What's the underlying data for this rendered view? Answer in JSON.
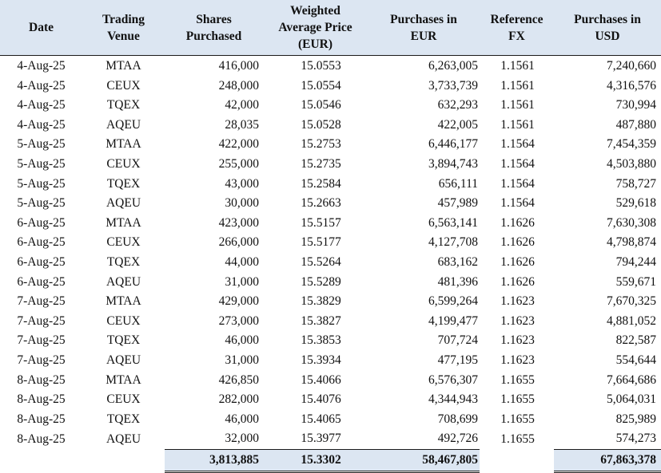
{
  "headers": {
    "date": [
      "Date"
    ],
    "venue": [
      "Trading",
      "Venue"
    ],
    "shares": [
      "Shares",
      "Purchased"
    ],
    "price": [
      "Weighted",
      "Average Price",
      "(EUR)"
    ],
    "eur": [
      "Purchases in",
      "EUR"
    ],
    "fx": [
      "Reference",
      "FX"
    ],
    "usd": [
      "Purchases in",
      "USD"
    ]
  },
  "rows": [
    {
      "date": "4-Aug-25",
      "venue": "MTAA",
      "shares": "416,000",
      "price": "15.0553",
      "eur": "6,263,005",
      "fx": "1.1561",
      "usd": "7,240,660"
    },
    {
      "date": "4-Aug-25",
      "venue": "CEUX",
      "shares": "248,000",
      "price": "15.0554",
      "eur": "3,733,739",
      "fx": "1.1561",
      "usd": "4,316,576"
    },
    {
      "date": "4-Aug-25",
      "venue": "TQEX",
      "shares": "42,000",
      "price": "15.0546",
      "eur": "632,293",
      "fx": "1.1561",
      "usd": "730,994"
    },
    {
      "date": "4-Aug-25",
      "venue": "AQEU",
      "shares": "28,035",
      "price": "15.0528",
      "eur": "422,005",
      "fx": "1.1561",
      "usd": "487,880"
    },
    {
      "date": "5-Aug-25",
      "venue": "MTAA",
      "shares": "422,000",
      "price": "15.2753",
      "eur": "6,446,177",
      "fx": "1.1564",
      "usd": "7,454,359"
    },
    {
      "date": "5-Aug-25",
      "venue": "CEUX",
      "shares": "255,000",
      "price": "15.2735",
      "eur": "3,894,743",
      "fx": "1.1564",
      "usd": "4,503,880"
    },
    {
      "date": "5-Aug-25",
      "venue": "TQEX",
      "shares": "43,000",
      "price": "15.2584",
      "eur": "656,111",
      "fx": "1.1564",
      "usd": "758,727"
    },
    {
      "date": "5-Aug-25",
      "venue": "AQEU",
      "shares": "30,000",
      "price": "15.2663",
      "eur": "457,989",
      "fx": "1.1564",
      "usd": "529,618"
    },
    {
      "date": "6-Aug-25",
      "venue": "MTAA",
      "shares": "423,000",
      "price": "15.5157",
      "eur": "6,563,141",
      "fx": "1.1626",
      "usd": "7,630,308"
    },
    {
      "date": "6-Aug-25",
      "venue": "CEUX",
      "shares": "266,000",
      "price": "15.5177",
      "eur": "4,127,708",
      "fx": "1.1626",
      "usd": "4,798,874"
    },
    {
      "date": "6-Aug-25",
      "venue": "TQEX",
      "shares": "44,000",
      "price": "15.5264",
      "eur": "683,162",
      "fx": "1.1626",
      "usd": "794,244"
    },
    {
      "date": "6-Aug-25",
      "venue": "AQEU",
      "shares": "31,000",
      "price": "15.5289",
      "eur": "481,396",
      "fx": "1.1626",
      "usd": "559,671"
    },
    {
      "date": "7-Aug-25",
      "venue": "MTAA",
      "shares": "429,000",
      "price": "15.3829",
      "eur": "6,599,264",
      "fx": "1.1623",
      "usd": "7,670,325"
    },
    {
      "date": "7-Aug-25",
      "venue": "CEUX",
      "shares": "273,000",
      "price": "15.3827",
      "eur": "4,199,477",
      "fx": "1.1623",
      "usd": "4,881,052"
    },
    {
      "date": "7-Aug-25",
      "venue": "TQEX",
      "shares": "46,000",
      "price": "15.3853",
      "eur": "707,724",
      "fx": "1.1623",
      "usd": "822,587"
    },
    {
      "date": "7-Aug-25",
      "venue": "AQEU",
      "shares": "31,000",
      "price": "15.3934",
      "eur": "477,195",
      "fx": "1.1623",
      "usd": "554,644"
    },
    {
      "date": "8-Aug-25",
      "venue": "MTAA",
      "shares": "426,850",
      "price": "15.4066",
      "eur": "6,576,307",
      "fx": "1.1655",
      "usd": "7,664,686"
    },
    {
      "date": "8-Aug-25",
      "venue": "CEUX",
      "shares": "282,000",
      "price": "15.4076",
      "eur": "4,344,943",
      "fx": "1.1655",
      "usd": "5,064,031"
    },
    {
      "date": "8-Aug-25",
      "venue": "TQEX",
      "shares": "46,000",
      "price": "15.4065",
      "eur": "708,699",
      "fx": "1.1655",
      "usd": "825,989"
    },
    {
      "date": "8-Aug-25",
      "venue": "AQEU",
      "shares": "32,000",
      "price": "15.3977",
      "eur": "492,726",
      "fx": "1.1655",
      "usd": "574,273"
    }
  ],
  "totals": {
    "shares": "3,813,885",
    "price": "15.3302",
    "eur": "58,467,805",
    "usd": "67,863,378"
  },
  "colors": {
    "header_bg": "#dce6f2",
    "total_bg": "#dce6f2"
  }
}
